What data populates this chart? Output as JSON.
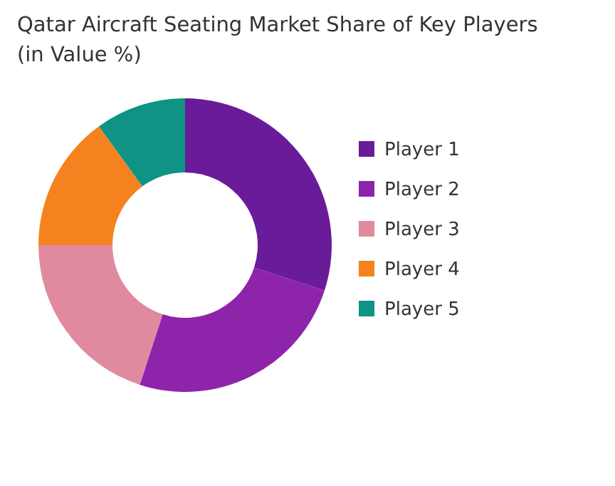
{
  "chart_data": {
    "type": "donut",
    "title": "Qatar Aircraft Seating Market Share of Key Players (in Value %)",
    "categories": [
      "Player 1",
      "Player 2",
      "Player 3",
      "Player 4",
      "Player 5"
    ],
    "values": [
      30,
      25,
      20,
      15,
      10
    ],
    "colors": [
      "#6a1b9a",
      "#8e24aa",
      "#e08aa0",
      "#f5821f",
      "#0e9384"
    ],
    "legend": "right"
  }
}
